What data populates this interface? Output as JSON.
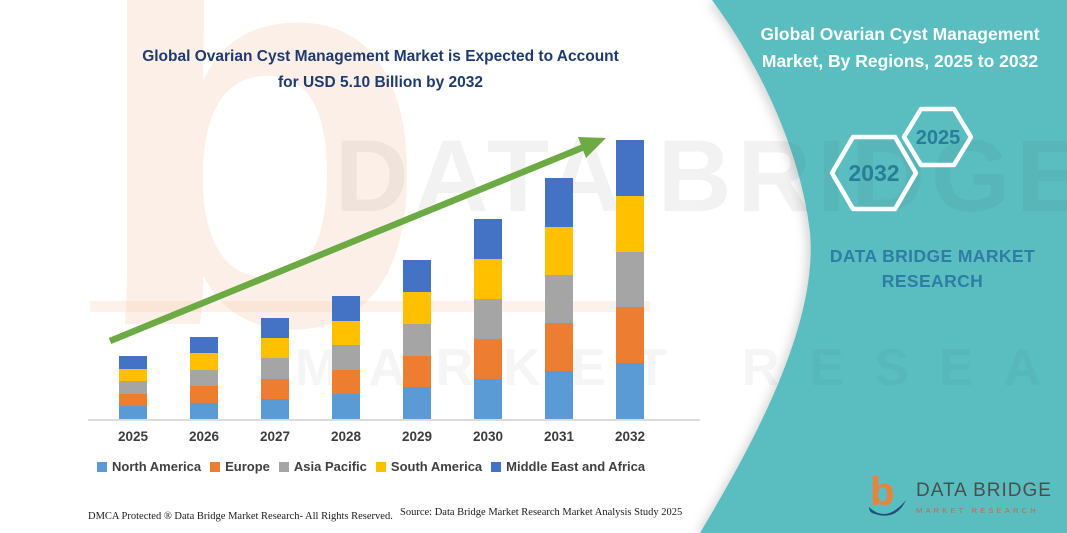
{
  "title": {
    "line1": "Global Ovarian Cyst Management Market is Expected to Account",
    "line2": "for USD 5.10 Billion by 2032"
  },
  "right_panel": {
    "title_line1": "Global Ovarian Cyst Management",
    "title_line2": "Market, By Regions, 2025 to 2032",
    "hexagon_large": "2032",
    "hexagon_small": "2025",
    "brand_line1": "DATA BRIDGE MARKET",
    "brand_line2": "RESEARCH",
    "panel_color": "#5abec1"
  },
  "chart_data": {
    "type": "bar",
    "stacked": true,
    "title": "Global Ovarian Cyst Management Market is Expected to Account for USD 5.10 Billion by 2032",
    "unit": "USD Billion",
    "categories": [
      "2025",
      "2026",
      "2027",
      "2028",
      "2029",
      "2030",
      "2031",
      "2032"
    ],
    "series": [
      {
        "name": "North America",
        "color": "#5b9bd5",
        "values": [
          0.23,
          0.3,
          0.37,
          0.45,
          0.58,
          0.73,
          0.88,
          1.02
        ]
      },
      {
        "name": "Europe",
        "color": "#ed7d31",
        "values": [
          0.23,
          0.3,
          0.37,
          0.45,
          0.58,
          0.73,
          0.88,
          1.02
        ]
      },
      {
        "name": "Asia Pacific",
        "color": "#a5a5a5",
        "values": [
          0.23,
          0.3,
          0.37,
          0.45,
          0.58,
          0.73,
          0.88,
          1.02
        ]
      },
      {
        "name": "South America",
        "color": "#ffc000",
        "values": [
          0.23,
          0.3,
          0.37,
          0.45,
          0.58,
          0.73,
          0.88,
          1.02
        ]
      },
      {
        "name": "Middle East and Africa",
        "color": "#4472c4",
        "values": [
          0.23,
          0.3,
          0.37,
          0.45,
          0.58,
          0.73,
          0.88,
          1.02
        ]
      }
    ],
    "totals": [
      1.15,
      1.5,
      1.85,
      2.25,
      2.9,
      3.65,
      4.4,
      5.1
    ],
    "ylim": [
      0,
      5.5
    ],
    "gridlines": false,
    "legend_position": "bottom",
    "trend_arrow": {
      "color": "#6caa44",
      "from_category": "2025",
      "to_category": "2032"
    }
  },
  "footer": {
    "dmca": "DMCA Protected ® Data Bridge Market Research-  All Rights Reserved.",
    "source": "Source: Data Bridge Market Research  Market Analysis Study 2025"
  },
  "logo": {
    "name": "DATA BRIDGE",
    "subtitle": "MARKET RESEARCH"
  },
  "watermarks": {
    "big_text": "DATA BRIDGE",
    "small_text": "MARKET RESEARCH",
    "peach_glyph": "b"
  }
}
